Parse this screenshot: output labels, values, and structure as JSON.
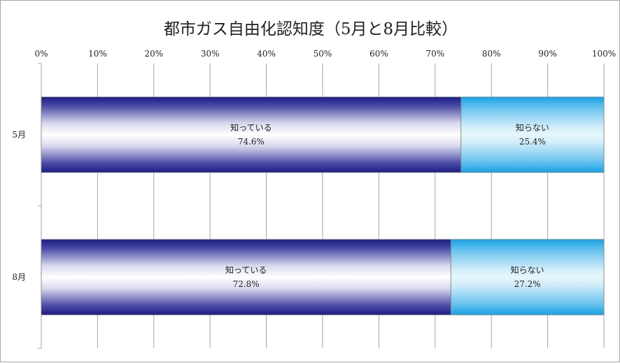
{
  "chart_data": {
    "type": "bar",
    "orientation": "horizontal",
    "stacked": "percent",
    "title": "都市ガス自由化認知度（5月と8月比較）",
    "categories": [
      "5月",
      "8月"
    ],
    "series": [
      {
        "name": "知っている",
        "values": [
          74.6,
          72.8
        ],
        "labels": [
          "74.6%",
          "72.8%"
        ],
        "color": "#1f1f8a"
      },
      {
        "name": "知らない",
        "values": [
          25.4,
          27.2
        ],
        "labels": [
          "25.4%",
          "27.2%"
        ],
        "color": "#1aa3e8"
      }
    ],
    "xlim": [
      0,
      100
    ],
    "xticks": [
      "0%",
      "10%",
      "20%",
      "30%",
      "40%",
      "50%",
      "60%",
      "70%",
      "80%",
      "90%",
      "100%"
    ],
    "grid": true,
    "axis_position": "top"
  }
}
